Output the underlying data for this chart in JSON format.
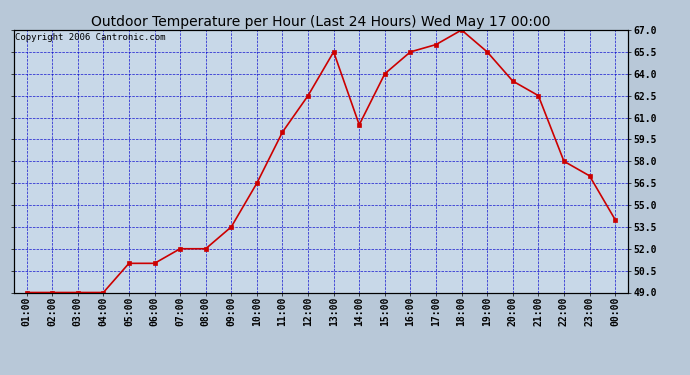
{
  "title": "Outdoor Temperature per Hour (Last 24 Hours) Wed May 17 00:00",
  "copyright": "Copyright 2006 Cantronic.com",
  "hours": [
    "01:00",
    "02:00",
    "03:00",
    "04:00",
    "05:00",
    "06:00",
    "07:00",
    "08:00",
    "09:00",
    "10:00",
    "11:00",
    "12:00",
    "13:00",
    "14:00",
    "15:00",
    "16:00",
    "17:00",
    "18:00",
    "19:00",
    "20:00",
    "21:00",
    "22:00",
    "23:00",
    "00:00"
  ],
  "temps": [
    49.0,
    49.0,
    49.0,
    49.0,
    51.0,
    51.0,
    52.0,
    52.0,
    53.5,
    56.5,
    60.0,
    62.5,
    65.5,
    60.5,
    64.0,
    65.5,
    66.0,
    67.0,
    65.5,
    63.5,
    62.5,
    58.0,
    57.0,
    54.0
  ],
  "ylim": [
    49.0,
    67.0
  ],
  "yticks": [
    49.0,
    50.5,
    52.0,
    53.5,
    55.0,
    56.5,
    58.0,
    59.5,
    61.0,
    62.5,
    64.0,
    65.5,
    67.0
  ],
  "line_color": "#cc0000",
  "marker_color": "#cc0000",
  "bg_color": "#b8c8d8",
  "plot_bg_color": "#c8d8e8",
  "grid_color": "#0000cc",
  "border_color": "#000000",
  "title_fontsize": 10,
  "tick_fontsize": 7,
  "copyright_fontsize": 6.5,
  "fig_width": 6.9,
  "fig_height": 3.75,
  "dpi": 100
}
